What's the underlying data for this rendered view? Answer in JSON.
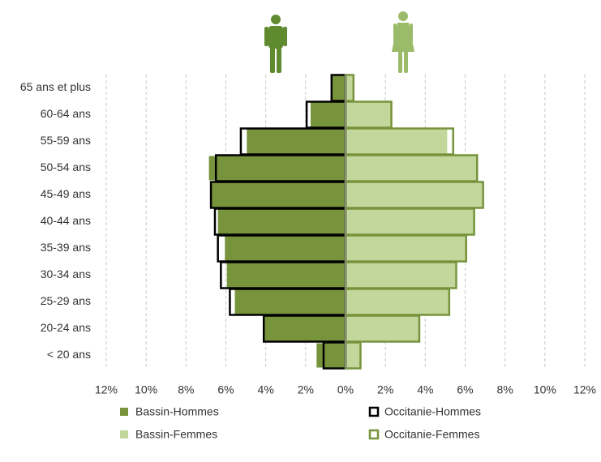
{
  "chart_data": {
    "type": "pyramid",
    "categories": [
      "65 ans et plus",
      "60-64 ans",
      "55-59 ans",
      "50-54 ans",
      "45-49 ans",
      "40-44 ans",
      "35-39 ans",
      "30-34 ans",
      "25-29 ans",
      "20-24 ans",
      "< 20 ans"
    ],
    "series": [
      {
        "name": "Bassin-Hommes",
        "color": "#77933c",
        "style": "fill",
        "values": [
          -0.65,
          -1.75,
          -4.95,
          -6.85,
          -6.75,
          -6.4,
          -6.05,
          -5.95,
          -5.55,
          -4.05,
          -1.45
        ]
      },
      {
        "name": "Bassin-Femmes",
        "color": "#c3d69b",
        "style": "fill",
        "values": [
          0.4,
          2.3,
          5.1,
          6.55,
          6.85,
          6.45,
          6.0,
          5.5,
          5.15,
          3.7,
          0.75
        ]
      },
      {
        "name": "Occitanie-Hommes",
        "color": "#000000",
        "style": "outline",
        "values": [
          -0.7,
          -1.95,
          -5.25,
          -6.5,
          -6.75,
          -6.55,
          -6.4,
          -6.25,
          -5.8,
          -4.1,
          -1.1
        ]
      },
      {
        "name": "Occitanie-Femmes",
        "color": "#77933c",
        "style": "outline",
        "values": [
          0.4,
          2.3,
          5.4,
          6.6,
          6.9,
          6.45,
          6.05,
          5.55,
          5.2,
          3.7,
          0.75
        ]
      }
    ],
    "xlim": [
      -12,
      12
    ],
    "xticks": [
      {
        "value": -12,
        "label": "12%"
      },
      {
        "value": -10,
        "label": "10%"
      },
      {
        "value": -8,
        "label": "8%"
      },
      {
        "value": -6,
        "label": "6%"
      },
      {
        "value": -4,
        "label": "4%"
      },
      {
        "value": -2,
        "label": "2%"
      },
      {
        "value": 0,
        "label": "0%"
      },
      {
        "value": 2,
        "label": "2%"
      },
      {
        "value": 4,
        "label": "4%"
      },
      {
        "value": 6,
        "label": "6%"
      },
      {
        "value": 8,
        "label": "8%"
      },
      {
        "value": 10,
        "label": "10%"
      },
      {
        "value": 12,
        "label": "12%"
      }
    ],
    "grid": true
  }
}
